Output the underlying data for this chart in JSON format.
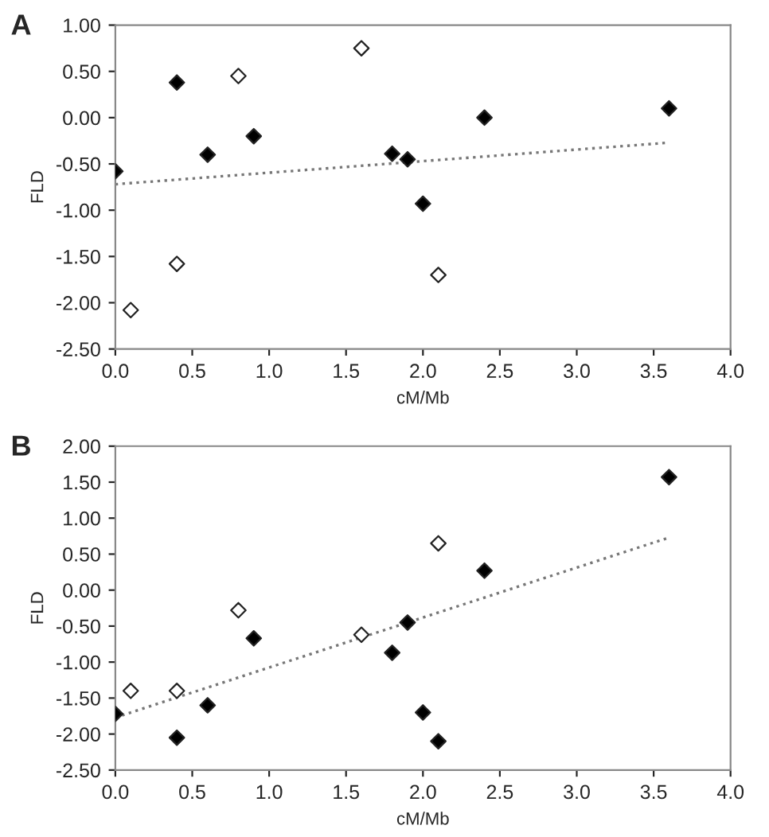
{
  "chart_data": [
    {
      "type": "scatter",
      "title": "A",
      "xlabel": "cM/Mb",
      "ylabel": "FLD",
      "marker": "diamond",
      "grid": false,
      "xlim": [
        0,
        4
      ],
      "ylim": [
        -2.5,
        1
      ],
      "xticks": [
        {
          "value": 0,
          "label": "0.0"
        },
        {
          "value": 0.5,
          "label": "0.5"
        },
        {
          "value": 1,
          "label": "1.0"
        },
        {
          "value": 1.5,
          "label": "1.5"
        },
        {
          "value": 2,
          "label": "2.0"
        },
        {
          "value": 2.5,
          "label": "2.5"
        },
        {
          "value": 3,
          "label": "3.0"
        },
        {
          "value": 3.5,
          "label": "3.5"
        },
        {
          "value": 4,
          "label": "4.0"
        }
      ],
      "yticks": [
        {
          "value": 1,
          "label": "1.00"
        },
        {
          "value": 0.5,
          "label": "0.50"
        },
        {
          "value": 0,
          "label": "0.00"
        },
        {
          "value": -0.5,
          "label": "-0.50"
        },
        {
          "value": -1,
          "label": "-1.00"
        },
        {
          "value": -1.5,
          "label": "-1.50"
        },
        {
          "value": -2,
          "label": "-2.00"
        },
        {
          "value": -2.5,
          "label": "-2.50"
        }
      ],
      "series": [
        {
          "type": "scatter",
          "color": "#000000",
          "x": [
            0,
            0.4,
            0.6,
            0.9,
            1.8,
            1.9,
            2.0,
            2.4,
            3.6
          ],
          "values": [
            -0.58,
            0.38,
            -0.4,
            -0.2,
            -0.39,
            -0.45,
            -0.93,
            0.0,
            0.1
          ]
        },
        {
          "type": "scatter",
          "color": "#ffffff",
          "x": [
            0.1,
            0.4,
            0.8,
            1.6,
            2.1
          ],
          "values": [
            -2.08,
            -1.58,
            0.45,
            0.75,
            -1.7
          ]
        },
        {
          "type": "line",
          "color": "#777777",
          "line_style": "dotted",
          "marker": "none",
          "x": [
            0,
            3.6
          ],
          "values": [
            -0.72,
            -0.27
          ]
        }
      ]
    },
    {
      "type": "scatter",
      "title": "B",
      "xlabel": "cM/Mb",
      "ylabel": "FLD",
      "marker": "diamond",
      "grid": false,
      "xlim": [
        0,
        4
      ],
      "ylim": [
        -2.5,
        2
      ],
      "xticks": [
        {
          "value": 0,
          "label": "0.0"
        },
        {
          "value": 0.5,
          "label": "0.5"
        },
        {
          "value": 1,
          "label": "1.0"
        },
        {
          "value": 1.5,
          "label": "1.5"
        },
        {
          "value": 2,
          "label": "2.0"
        },
        {
          "value": 2.5,
          "label": "2.5"
        },
        {
          "value": 3,
          "label": "3.0"
        },
        {
          "value": 3.5,
          "label": "3.5"
        },
        {
          "value": 4,
          "label": "4.0"
        }
      ],
      "yticks": [
        {
          "value": 2,
          "label": "2.00"
        },
        {
          "value": 1.5,
          "label": "1.50"
        },
        {
          "value": 1,
          "label": "1.00"
        },
        {
          "value": 0.5,
          "label": "0.50"
        },
        {
          "value": 0,
          "label": "0.00"
        },
        {
          "value": -0.5,
          "label": "-0.50"
        },
        {
          "value": -1,
          "label": "-1.00"
        },
        {
          "value": -1.5,
          "label": "-1.50"
        },
        {
          "value": -2,
          "label": "-2.00"
        },
        {
          "value": -2.5,
          "label": "-2.50"
        }
      ],
      "series": [
        {
          "type": "scatter",
          "color": "#000000",
          "x": [
            0,
            0.4,
            0.6,
            0.9,
            1.8,
            1.9,
            2.0,
            2.1,
            2.4,
            3.6
          ],
          "values": [
            -1.72,
            -2.05,
            -1.6,
            -0.67,
            -0.87,
            -0.45,
            -1.7,
            -2.1,
            0.27,
            1.57
          ]
        },
        {
          "type": "scatter",
          "color": "#ffffff",
          "x": [
            0.1,
            0.4,
            0.8,
            1.6,
            2.1
          ],
          "values": [
            -1.4,
            -1.4,
            -0.28,
            -0.62,
            0.65
          ]
        },
        {
          "type": "line",
          "color": "#777777",
          "line_style": "dotted",
          "marker": "none",
          "x": [
            0,
            3.6
          ],
          "values": [
            -1.77,
            0.73
          ]
        }
      ]
    }
  ]
}
